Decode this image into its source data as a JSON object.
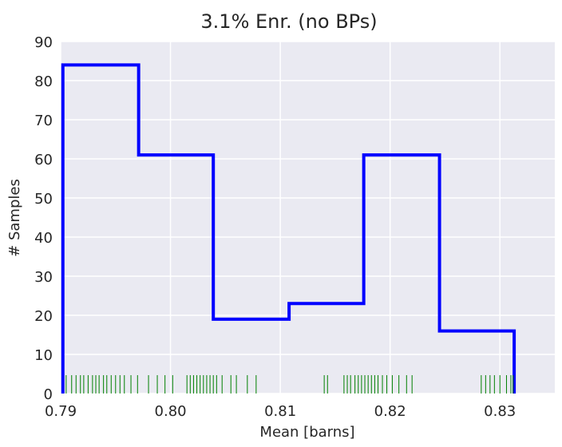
{
  "chart_data": {
    "type": "histogram",
    "title": "3.1% Enr. (no BPs)",
    "xlabel": "Mean [barns]",
    "ylabel": "# Samples",
    "xlim": [
      0.79,
      0.835
    ],
    "ylim": [
      0,
      90
    ],
    "xticks": [
      "0.79",
      "0.80",
      "0.81",
      "0.82",
      "0.83"
    ],
    "yticks": [
      "0",
      "10",
      "20",
      "30",
      "40",
      "50",
      "60",
      "70",
      "80",
      "90"
    ],
    "grid": true,
    "bin_edges": [
      0.7902,
      0.7971,
      0.8039,
      0.8108,
      0.8176,
      0.8245,
      0.8313
    ],
    "counts": [
      84,
      61,
      19,
      23,
      61,
      16
    ],
    "rug": [
      0.7905,
      0.791,
      0.7914,
      0.7918,
      0.7921,
      0.7925,
      0.7929,
      0.7932,
      0.7935,
      0.7939,
      0.7942,
      0.7946,
      0.795,
      0.7954,
      0.7958,
      0.7964,
      0.797,
      0.798,
      0.7988,
      0.7995,
      0.8002,
      0.8015,
      0.8018,
      0.8021,
      0.8024,
      0.8027,
      0.803,
      0.8033,
      0.8036,
      0.8039,
      0.8042,
      0.8047,
      0.8055,
      0.806,
      0.807,
      0.8078,
      0.814,
      0.8143,
      0.8158,
      0.8161,
      0.8164,
      0.8168,
      0.8171,
      0.8174,
      0.8177,
      0.818,
      0.8183,
      0.8186,
      0.8189,
      0.8193,
      0.8197,
      0.8202,
      0.8208,
      0.8215,
      0.822,
      0.8283,
      0.8287,
      0.8291,
      0.8295,
      0.83,
      0.8306,
      0.831,
      0.8312
    ],
    "colors": {
      "hist": "#0000ff",
      "rug": "#008000",
      "plot_bg": "#eaeaf2",
      "grid": "#ffffff",
      "text": "#262626"
    }
  }
}
